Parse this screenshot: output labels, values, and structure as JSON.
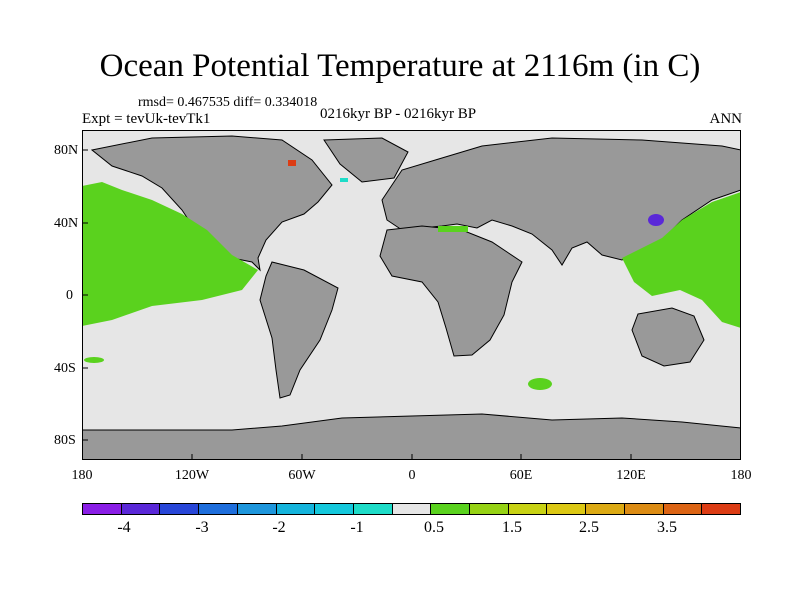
{
  "title": "Ocean Potential Temperature at 2116m (in C)",
  "stats": "rmsd= 0.467535 diff= 0.334018",
  "experiment": "Expt = tevUk-tevTk1",
  "period": "0216kyr BP - 0216kyr BP",
  "season": "ANN",
  "lat_labels": [
    "80N",
    "40N",
    "0",
    "40S",
    "80S"
  ],
  "lon_labels": [
    "180",
    "120W",
    "60W",
    "0",
    "60E",
    "120E",
    "180"
  ],
  "colorbar": {
    "colors": [
      "#8a1ee6",
      "#5a28d8",
      "#2846d8",
      "#1e6edc",
      "#1e96dc",
      "#14b4dc",
      "#14c8dc",
      "#1edcc8",
      "#e6e6e6",
      "#5ad21e",
      "#96d214",
      "#c8d214",
      "#dcc814",
      "#dcaa14",
      "#dc8c14",
      "#dc6414",
      "#dc3c14"
    ],
    "labels": [
      "-4",
      "-3",
      "-2",
      "-1",
      "0.5",
      "1.5",
      "2.5",
      "3.5"
    ]
  },
  "map_colors": {
    "land": "#999999",
    "ocean": "#e6e6e6",
    "warm": "#5ad21e",
    "cool": "#5a28d8",
    "hot": "#dc3c14",
    "cyan": "#1edcc8"
  }
}
